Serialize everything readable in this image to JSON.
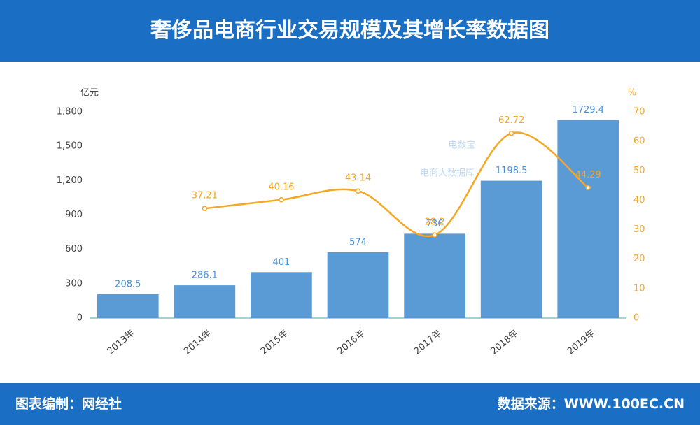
{
  "header": {
    "title": "奢侈品电商行业交易规模及其增长率数据图"
  },
  "footer": {
    "left": "图表编制：网经社",
    "right": "数据来源：WWW.100EC.CN"
  },
  "watermark": {
    "brand": "电数宝",
    "tagline": "电商大数据库"
  },
  "chart_data": {
    "type": "bar-line",
    "y_label": "亿元",
    "y2_label": "%",
    "categories": [
      "2013年",
      "2014年",
      "2015年",
      "2016年",
      "2017年",
      "2018年",
      "2019年"
    ],
    "series": [
      {
        "name": "交易规模",
        "type": "bar",
        "color": "#5b9bd5",
        "values": [
          208.5,
          286.1,
          401,
          574,
          736,
          1198.5,
          1729.4
        ]
      },
      {
        "name": "增长率",
        "type": "line",
        "axis": "y2",
        "color": "#f5a623",
        "values": [
          null,
          37.21,
          40.16,
          43.14,
          28.2,
          62.72,
          44.29
        ]
      }
    ],
    "ylim": [
      0,
      1800
    ],
    "yticks": [
      0,
      300,
      600,
      900,
      {
        "value": 1200,
        "label": "1,200"
      },
      {
        "value": 1500,
        "label": "1,500"
      },
      {
        "value": 1800,
        "label": "1,800"
      }
    ],
    "y2lim": [
      0,
      70
    ],
    "y2ticks": [
      0,
      10,
      20,
      30,
      40,
      50,
      60,
      70
    ],
    "grid": false
  }
}
